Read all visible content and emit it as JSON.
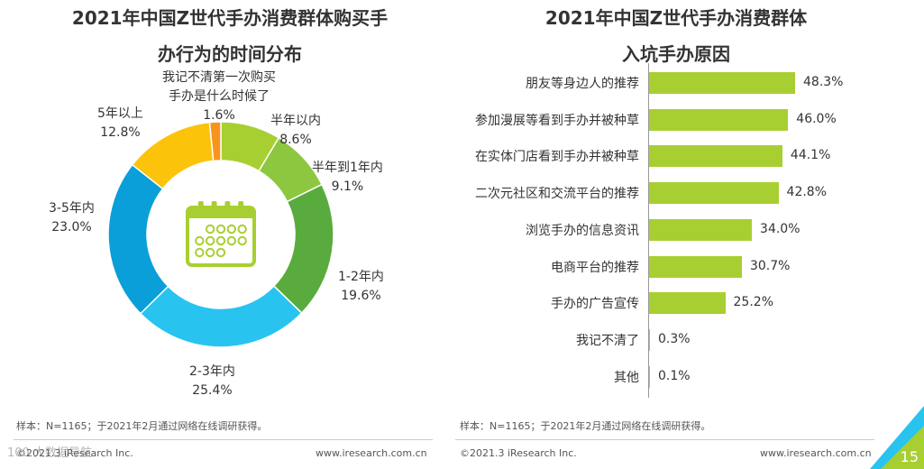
{
  "left": {
    "title_line1": "2021年中国Z世代手办消费群体购买手",
    "title_line2": "办行为的时间分布",
    "note": "样本：N=1165；于2021年2月通过网络在线调研获得。",
    "footer_left": "©2021.3 iResearch Inc.",
    "footer_right": "www.iresearch.com.cn",
    "icon": "calendar-icon"
  },
  "right": {
    "title_line1": "2021年中国Z世代手办消费群体",
    "title_line2": "入坑手办原因",
    "note": "样本：N=1165；于2021年2月通过网络在线调研获得。",
    "footer_left": "©2021.3 iResearch Inc.",
    "footer_right": "www.iresearch.com.cn"
  },
  "page_number": "15",
  "watermark": "100 大数据导航",
  "chart_data": [
    {
      "type": "pie",
      "subtype": "donut",
      "title": "2021年中国Z世代手办消费群体购买手办行为的时间分布",
      "slices": [
        {
          "label": "半年以内",
          "value": 8.6,
          "value_label": "8.6%",
          "color": "#a8cf31"
        },
        {
          "label": "半年到1年内",
          "value": 9.1,
          "value_label": "9.1%",
          "color": "#8dc63f"
        },
        {
          "label": "1-2年内",
          "value": 19.6,
          "value_label": "19.6%",
          "color": "#5aab3e"
        },
        {
          "label": "2-3年内",
          "value": 25.4,
          "value_label": "25.4%",
          "color": "#29c3ef"
        },
        {
          "label": "3-5年内",
          "value": 23.0,
          "value_label": "23.0%",
          "color": "#0a9fd8"
        },
        {
          "label": "5年以上",
          "value": 12.8,
          "value_label": "12.8%",
          "color": "#fcc30b"
        },
        {
          "label_line1": "我记不清第一次购买",
          "label": "手办是什么时候了",
          "value": 1.6,
          "value_label": "1.6%",
          "color": "#f7941d"
        }
      ]
    },
    {
      "type": "bar",
      "orientation": "horizontal",
      "title": "2021年中国Z世代手办消费群体入坑手办原因",
      "categories": [
        "朋友等身边人的推荐",
        "参加漫展等看到手办并被种草",
        "在实体门店看到手办并被种草",
        "二次元社区和交流平台的推荐",
        "浏览手办的信息资讯",
        "电商平台的推荐",
        "手办的广告宣传",
        "我记不清了",
        "其他"
      ],
      "values": [
        48.3,
        46.0,
        44.1,
        42.8,
        34.0,
        30.7,
        25.2,
        0.3,
        0.1
      ],
      "value_labels": [
        "48.3%",
        "46.0%",
        "44.1%",
        "42.8%",
        "34.0%",
        "30.7%",
        "25.2%",
        "0.3%",
        "0.1%"
      ],
      "xlim": [
        0,
        55
      ],
      "color": "#a8cf31"
    }
  ]
}
